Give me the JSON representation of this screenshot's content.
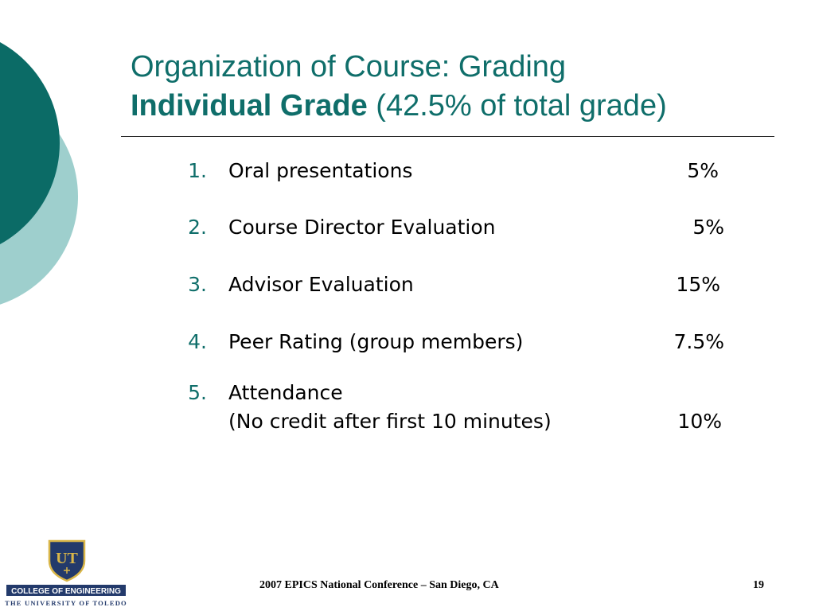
{
  "slide": {
    "title_line1": "Organization of Course: Grading",
    "title_line2_bold": "Individual Grade",
    "title_line2_rest": " (42.5% of total grade)",
    "items": [
      {
        "number": "1.",
        "label": "Oral presentations",
        "percent": "5%"
      },
      {
        "number": "2.",
        "label": "Course Director Evaluation",
        "percent": "5%"
      },
      {
        "number": "3.",
        "label": "Advisor Evaluation",
        "percent": "15%"
      },
      {
        "number": "4.",
        "label": "Peer Rating (group members)",
        "percent": "7.5%"
      },
      {
        "number": "5.",
        "label": "Attendance",
        "label_line2": "(No credit after first 10 minutes)",
        "percent": "10%"
      }
    ]
  },
  "footer": {
    "conference": "2007 EPICS National Conference – San Diego, CA",
    "page_number": "19"
  },
  "logo": {
    "monogram": "UT",
    "college": "COLLEGE OF ENGINEERING",
    "university": "THE UNIVERSITY OF TOLEDO"
  },
  "colors": {
    "title_teal": "#0f6e6a",
    "dark_teal_circle": "#0b6b66",
    "light_teal_circle": "#9ecfcd",
    "shield_navy": "#233a6b",
    "shield_gold": "#d9b648"
  }
}
